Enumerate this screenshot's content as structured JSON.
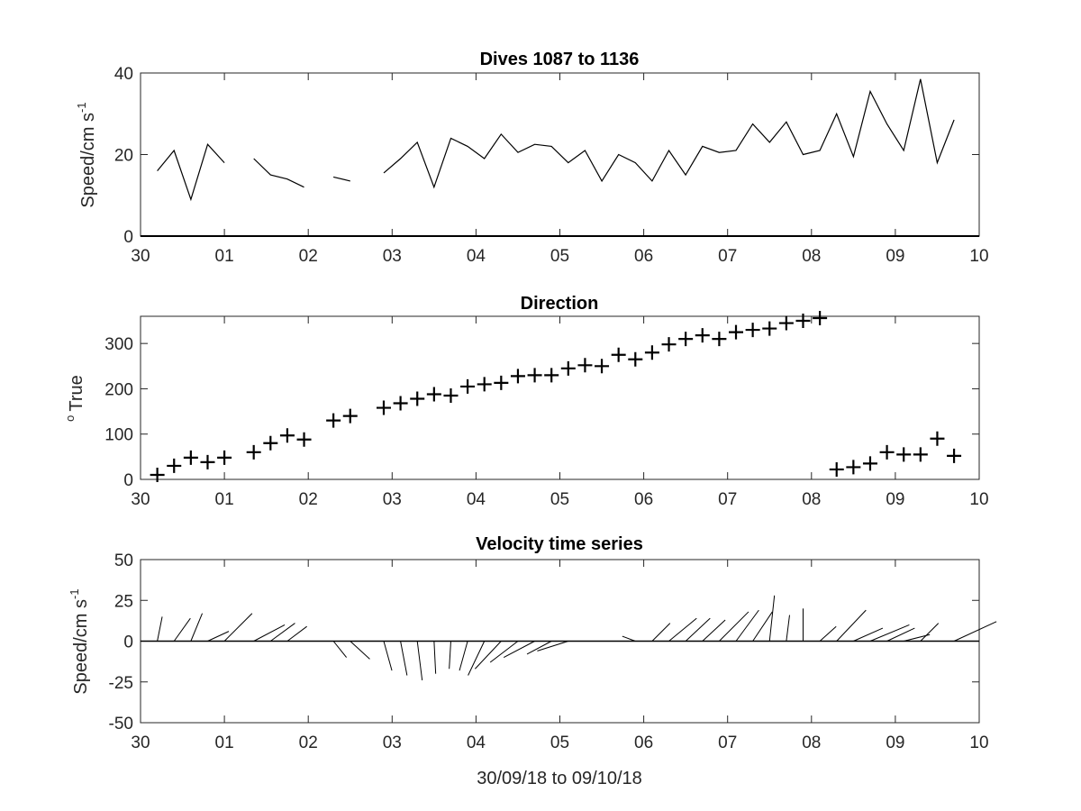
{
  "colors": {
    "ink": "#000000",
    "axis": "#262626",
    "background": "#ffffff"
  },
  "chart_data": [
    {
      "type": "line",
      "title": "Dives 1087 to 1136",
      "ylabel": {
        "base": "Speed/cm s",
        "superscript": "-1"
      },
      "xlabel": "",
      "xlim": [
        0,
        10
      ],
      "ylim": [
        0,
        40
      ],
      "x_tick_labels": [
        "30",
        "01",
        "02",
        "03",
        "04",
        "05",
        "06",
        "07",
        "08",
        "09",
        "10"
      ],
      "y_ticks": [
        0,
        20,
        40
      ],
      "y_tick_labels": [
        "0",
        "20",
        "40"
      ],
      "grid": false,
      "note_x_units": "days from 30/09/18 00:00",
      "x": [
        0.2,
        0.4,
        0.6,
        0.8,
        1.0,
        null,
        1.35,
        1.55,
        1.75,
        1.95,
        null,
        2.3,
        2.5,
        null,
        2.9,
        3.1,
        3.3,
        3.5,
        3.7,
        3.9,
        4.1,
        4.3,
        4.5,
        4.7,
        4.9,
        5.1,
        5.3,
        5.5,
        5.7,
        5.9,
        6.1,
        6.3,
        6.5,
        6.7,
        6.9,
        7.1,
        7.3,
        7.5,
        7.7,
        7.9,
        8.1,
        8.3,
        8.5,
        8.7,
        8.9,
        9.1,
        9.3,
        9.5,
        9.7
      ],
      "y": [
        16,
        21,
        9,
        22.5,
        18,
        null,
        19,
        15,
        14,
        12,
        null,
        14.5,
        13.5,
        null,
        15.5,
        19,
        23,
        12,
        24,
        22,
        19,
        25,
        20.5,
        22.5,
        22,
        18,
        21,
        13.5,
        20,
        18,
        13.5,
        21,
        15,
        22,
        20.5,
        21,
        27.5,
        23,
        28,
        20,
        21,
        30,
        19.5,
        35.5,
        27.5,
        21,
        38.5,
        18,
        28.5
      ]
    },
    {
      "type": "scatter",
      "title": "Direction",
      "ylabel": {
        "base": "True",
        "superscript": "o"
      },
      "xlabel": "",
      "xlim": [
        0,
        10
      ],
      "ylim": [
        0,
        360
      ],
      "x_tick_labels": [
        "30",
        "01",
        "02",
        "03",
        "04",
        "05",
        "06",
        "07",
        "08",
        "09",
        "10"
      ],
      "y_ticks": [
        0,
        100,
        200,
        300
      ],
      "y_tick_labels": [
        "0",
        "100",
        "200",
        "300"
      ],
      "grid": false,
      "marker": "+",
      "x": [
        0.2,
        0.4,
        0.6,
        0.8,
        1.0,
        1.35,
        1.55,
        1.75,
        1.95,
        2.3,
        2.5,
        2.9,
        3.1,
        3.3,
        3.5,
        3.7,
        3.9,
        4.1,
        4.3,
        4.5,
        4.7,
        4.9,
        5.1,
        5.3,
        5.5,
        5.7,
        5.9,
        6.1,
        6.3,
        6.5,
        6.7,
        6.9,
        7.1,
        7.3,
        7.5,
        7.7,
        7.9,
        8.1,
        8.3,
        8.5,
        8.7,
        8.9,
        9.1,
        9.3,
        9.5,
        9.7
      ],
      "y": [
        10,
        30,
        48,
        38,
        48,
        60,
        80,
        97,
        88,
        130,
        140,
        158,
        168,
        178,
        188,
        185,
        205,
        210,
        213,
        228,
        230,
        230,
        245,
        252,
        250,
        275,
        265,
        280,
        298,
        310,
        318,
        310,
        325,
        330,
        333,
        345,
        350,
        356,
        22,
        27,
        35,
        60,
        55,
        55,
        90,
        52
      ]
    },
    {
      "type": "line",
      "subtype": "quiver",
      "title": "Velocity time series",
      "ylabel": {
        "base": "Speed/cm s",
        "superscript": "-1"
      },
      "xlabel": "30/09/18 to 09/10/18",
      "xlim": [
        0,
        10
      ],
      "ylim": [
        -50,
        50
      ],
      "x_tick_labels": [
        "30",
        "01",
        "02",
        "03",
        "04",
        "05",
        "06",
        "07",
        "08",
        "09",
        "10"
      ],
      "y_ticks": [
        -50,
        -25,
        0,
        25,
        50
      ],
      "y_tick_labels": [
        "-50",
        "-25",
        "0",
        "25",
        "50"
      ],
      "grid": false,
      "note": "sticks drawn from (t, 0) in direction of flow; length = speed",
      "x": [
        0.2,
        0.4,
        0.6,
        0.8,
        1.0,
        1.35,
        1.55,
        1.75,
        1.95,
        2.3,
        2.5,
        2.9,
        3.1,
        3.3,
        3.5,
        3.7,
        3.9,
        4.1,
        4.3,
        4.5,
        4.7,
        4.9,
        5.1,
        5.3,
        5.5,
        5.7,
        5.9,
        6.1,
        6.3,
        6.5,
        6.7,
        6.9,
        7.1,
        7.3,
        7.5,
        7.7,
        7.9,
        8.1,
        8.3,
        8.5,
        8.7,
        8.9,
        9.1,
        9.3,
        9.5,
        9.7
      ],
      "u": [
        3,
        10,
        7,
        13,
        17,
        19,
        15,
        12,
        14,
        8,
        12,
        5,
        4,
        3,
        1,
        -1,
        -5,
        -10,
        -16,
        -17,
        -19,
        -15,
        -19,
        -16,
        -19,
        1,
        -8,
        11,
        17,
        15,
        14,
        18,
        14,
        12,
        3,
        2,
        0,
        10,
        18,
        18,
        24,
        17,
        16,
        11,
        25,
        26
      ],
      "v": [
        15,
        14,
        17,
        6,
        17,
        10,
        11,
        9,
        0,
        -10,
        -11,
        -18,
        -21,
        -24,
        -20,
        -17,
        -18,
        -21,
        -17,
        -13,
        -10,
        -8,
        -6,
        0,
        0,
        0,
        3,
        11,
        14,
        14,
        13,
        18,
        19,
        18,
        28,
        16,
        20,
        9,
        19,
        8,
        10,
        8,
        4,
        11,
        0,
        12
      ]
    }
  ]
}
